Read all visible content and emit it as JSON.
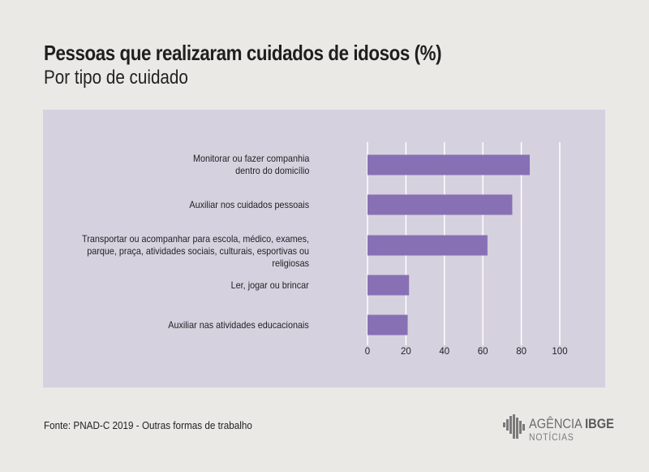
{
  "header": {
    "title": "Pessoas que realizaram cuidados de idosos (%)",
    "subtitle": "Por tipo de cuidado"
  },
  "chart_data": {
    "type": "bar",
    "orientation": "horizontal",
    "title": "Pessoas que realizaram cuidados de idosos (%)",
    "subtitle": "Por tipo de cuidado",
    "categories": [
      "Monitorar ou fazer companhia\ndentro do domicílio",
      "Auxiliar nos cuidados pessoais",
      "Transportar ou acompanhar para escola, médico, exames,\nparque, praça, atividades sociais, culturais, esportivas ou religiosas",
      "Ler, jogar ou brincar",
      "Auxiliar nas atividades educacionais"
    ],
    "values": [
      84.4,
      75.3,
      62.4,
      21.6,
      20.9
    ],
    "xlim": [
      0,
      100
    ],
    "xticks": [
      0,
      20,
      40,
      60,
      80,
      100
    ],
    "grid": true,
    "legend": "none",
    "colors": {
      "bar": "#8870b5",
      "panel": "#d6d1df",
      "grid": "#ffffff"
    }
  },
  "footer": {
    "source": "Fonte: PNAD-C 2019 - Outras formas de trabalho"
  },
  "logo": {
    "name_regular": "AGÊNCIA",
    "name_bold": "IBGE",
    "sub": "NOTÍCIAS"
  }
}
